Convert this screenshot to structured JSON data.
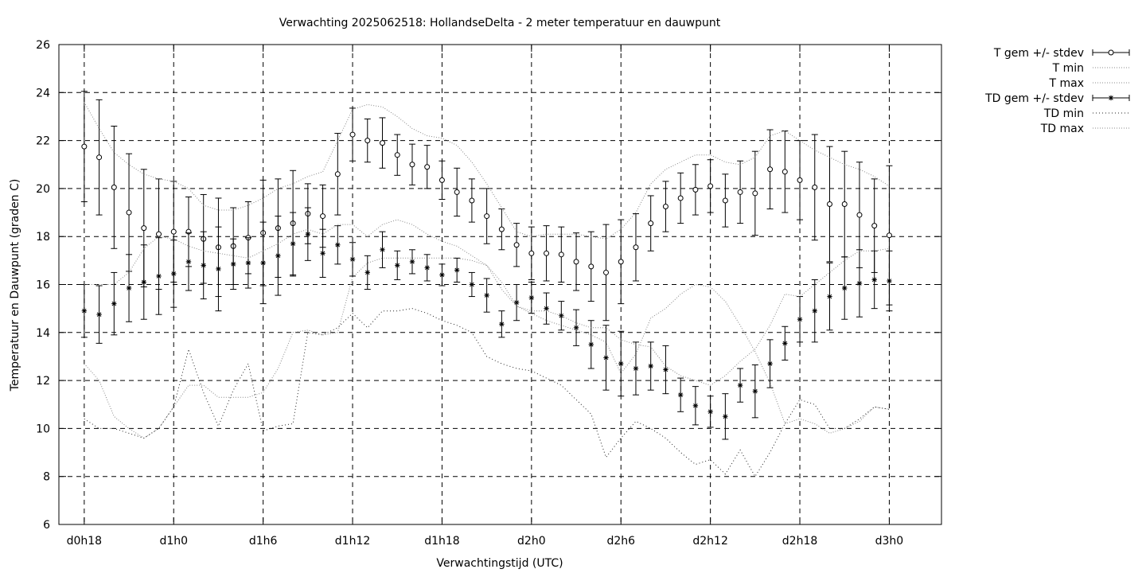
{
  "chart_data": {
    "type": "line",
    "title": "Verwachting 2025062518: HollandseDelta - 2 meter temperatuur en dauwpunt",
    "xlabel": "Verwachtingstijd (UTC)",
    "ylabel": "Temperatuur en Dauwpunt (graden C)",
    "ylim": [
      6,
      26
    ],
    "yticks": [
      6,
      8,
      10,
      12,
      14,
      16,
      18,
      20,
      22,
      24,
      26
    ],
    "xlim": [
      -1.7,
      57.5
    ],
    "x_unit": "hours after d0h0",
    "xticks": [
      {
        "x": 0,
        "label": "d0h18"
      },
      {
        "x": 6,
        "label": "d1h0"
      },
      {
        "x": 12,
        "label": "d1h6"
      },
      {
        "x": 18,
        "label": "d1h12"
      },
      {
        "x": 24,
        "label": "d1h18"
      },
      {
        "x": 30,
        "label": "d2h0"
      },
      {
        "x": 36,
        "label": "d2h6"
      },
      {
        "x": 42,
        "label": "d2h12"
      },
      {
        "x": 48,
        "label": "d2h18"
      },
      {
        "x": 54,
        "label": "d3h0"
      }
    ],
    "grid": true,
    "legend_position": "outside top-right",
    "x": [
      0,
      1,
      2,
      3,
      4,
      5,
      6,
      7,
      8,
      9,
      10,
      11,
      12,
      13,
      14,
      15,
      16,
      17,
      18,
      19,
      20,
      21,
      22,
      23,
      24,
      25,
      26,
      27,
      28,
      29,
      30,
      31,
      32,
      33,
      34,
      35,
      36,
      37,
      38,
      39,
      40,
      41,
      42,
      43,
      44,
      45,
      46,
      47,
      48,
      49,
      50,
      51,
      52,
      53,
      54
    ],
    "series": [
      {
        "name": "T gem +/- stdev",
        "style": "errorbars-circle",
        "values": [
          21.75,
          21.3,
          20.05,
          19.0,
          18.35,
          18.1,
          18.2,
          18.2,
          17.9,
          17.55,
          17.6,
          17.95,
          18.15,
          18.35,
          18.55,
          18.95,
          18.85,
          20.6,
          22.25,
          22.0,
          21.9,
          21.4,
          21.0,
          20.9,
          20.35,
          19.85,
          19.5,
          18.85,
          18.3,
          17.65,
          17.3,
          17.3,
          17.25,
          16.95,
          16.75,
          16.5,
          16.95,
          17.55,
          18.55,
          19.25,
          19.6,
          19.95,
          20.1,
          19.5,
          19.85,
          19.8,
          20.8,
          20.7,
          20.35,
          20.05,
          19.35,
          19.35,
          18.9,
          18.45,
          18.05
        ],
        "errors": [
          2.3,
          2.4,
          2.55,
          2.45,
          2.45,
          2.3,
          2.1,
          1.45,
          1.85,
          2.05,
          1.6,
          1.5,
          2.2,
          2.05,
          2.2,
          1.25,
          1.3,
          1.7,
          1.1,
          0.9,
          1.05,
          0.85,
          0.85,
          0.9,
          0.8,
          1.0,
          0.9,
          1.15,
          0.85,
          0.9,
          1.1,
          1.15,
          1.15,
          1.2,
          1.45,
          2.0,
          1.75,
          1.4,
          1.15,
          1.05,
          1.05,
          1.05,
          1.1,
          1.1,
          1.3,
          1.75,
          1.65,
          1.7,
          1.65,
          2.2,
          2.4,
          2.2,
          2.2,
          1.95,
          2.9
        ]
      },
      {
        "name": "T min",
        "style": "dotted",
        "values": [
          12.7,
          12.0,
          10.5,
          10.0,
          9.6,
          10.0,
          10.9,
          11.8,
          11.8,
          11.3,
          11.3,
          11.3,
          11.5,
          12.5,
          14.0,
          14.1,
          13.9,
          14.0,
          16.3,
          16.9,
          17.1,
          17.1,
          17.1,
          17.1,
          17.1,
          17.1,
          17.0,
          16.8,
          16.1,
          15.1,
          14.8,
          14.5,
          14.3,
          14.1,
          13.9,
          13.6,
          12.3,
          13.1,
          14.6,
          15.0,
          15.6,
          16.0,
          15.9,
          15.3,
          14.3,
          13.2,
          11.9,
          10.2,
          10.4,
          10.2,
          9.8,
          10.0,
          10.3,
          10.9,
          10.8
        ]
      },
      {
        "name": "T max",
        "style": "dotted",
        "values": [
          23.6,
          22.5,
          21.5,
          21.0,
          20.6,
          20.4,
          20.3,
          20.0,
          19.3,
          19.1,
          19.1,
          19.3,
          19.6,
          20.0,
          20.2,
          20.5,
          20.7,
          22.0,
          23.3,
          23.5,
          23.4,
          23.0,
          22.5,
          22.2,
          22.1,
          21.8,
          21.1,
          20.2,
          19.2,
          18.2,
          18.0,
          18.1,
          18.1,
          18.1,
          18.0,
          17.9,
          18.3,
          19.0,
          20.2,
          20.8,
          21.1,
          21.4,
          21.4,
          21.1,
          21.0,
          21.3,
          22.2,
          22.4,
          22.0,
          21.6,
          21.3,
          21.0,
          20.8,
          20.5,
          20.1
        ]
      },
      {
        "name": "TD gem +/- stdev",
        "style": "errorbars-star",
        "values": [
          14.9,
          14.75,
          15.2,
          15.85,
          16.1,
          16.35,
          16.45,
          16.95,
          16.8,
          16.65,
          16.85,
          16.9,
          16.9,
          17.2,
          17.7,
          18.1,
          17.3,
          17.65,
          17.05,
          16.5,
          17.45,
          16.8,
          16.95,
          16.7,
          16.4,
          16.6,
          16.0,
          15.55,
          14.35,
          15.25,
          15.45,
          15.0,
          14.7,
          14.2,
          13.5,
          12.95,
          12.7,
          12.5,
          12.6,
          12.45,
          11.4,
          10.95,
          10.7,
          10.5,
          11.8,
          11.55,
          12.7,
          13.55,
          14.55,
          14.9,
          15.5,
          15.85,
          16.05,
          16.2,
          16.15
        ],
        "errors": [
          1.1,
          1.2,
          1.3,
          1.4,
          1.55,
          1.6,
          1.4,
          1.2,
          1.4,
          1.75,
          1.05,
          1.05,
          1.7,
          1.65,
          1.3,
          1.1,
          1.0,
          0.8,
          0.7,
          0.7,
          0.75,
          0.6,
          0.5,
          0.55,
          0.45,
          0.5,
          0.5,
          0.7,
          0.55,
          0.75,
          0.65,
          0.65,
          0.6,
          0.75,
          1.0,
          1.35,
          1.35,
          1.1,
          1.0,
          1.0,
          0.7,
          0.8,
          0.65,
          0.95,
          0.7,
          1.1,
          1.0,
          0.7,
          0.95,
          1.3,
          1.4,
          1.3,
          1.4,
          1.2,
          1.25
        ]
      },
      {
        "name": "TD min",
        "style": "dotted-sparse",
        "values": [
          10.4,
          10.0,
          10.0,
          9.8,
          9.6,
          10.0,
          10.9,
          13.3,
          11.5,
          10.1,
          11.6,
          12.7,
          9.9,
          10.1,
          10.2,
          14.0,
          13.9,
          14.2,
          14.8,
          14.2,
          14.9,
          14.9,
          15.0,
          14.8,
          14.5,
          14.3,
          14.0,
          13.0,
          12.7,
          12.5,
          12.4,
          12.1,
          11.8,
          11.2,
          10.6,
          8.8,
          9.6,
          10.3,
          10.0,
          9.6,
          9.0,
          8.5,
          8.7,
          8.1,
          9.1,
          8.0,
          9.0,
          10.2,
          11.2,
          11.0,
          10.0,
          10.0,
          10.4,
          10.9,
          10.8
        ]
      },
      {
        "name": "TD max",
        "style": "dotted",
        "values": [
          16.0,
          16.0,
          16.0,
          16.5,
          17.5,
          18.0,
          17.9,
          17.6,
          17.4,
          17.3,
          17.2,
          17.1,
          17.4,
          17.7,
          18.1,
          18.3,
          18.1,
          18.5,
          18.5,
          18.0,
          18.5,
          18.7,
          18.5,
          18.1,
          17.8,
          17.6,
          17.2,
          16.8,
          15.8,
          15.1,
          14.9,
          14.9,
          14.7,
          14.4,
          14.2,
          14.2,
          13.7,
          13.5,
          13.4,
          12.6,
          12.2,
          12.0,
          11.8,
          12.2,
          12.8,
          13.3,
          14.3,
          15.6,
          15.5,
          16.0,
          16.5,
          17.0,
          17.4,
          17.4,
          17.5
        ]
      }
    ]
  }
}
